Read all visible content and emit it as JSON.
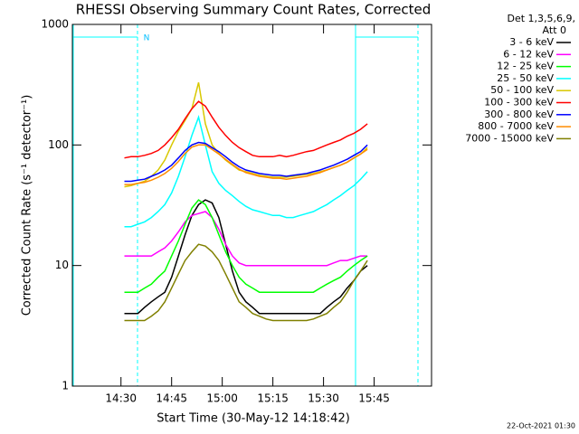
{
  "chart_data": {
    "type": "line",
    "title": "RHESSI Observing Summary Count Rates, Corrected",
    "xlabel": "Start Time (30-May-12 14:18:42)",
    "ylabel": "Corrected Count Rate (s⁻¹ detector⁻¹)",
    "legend_title": [
      "Det 1,3,5,6,9,",
      "Att 0"
    ],
    "annotation": "N",
    "footer": "22-Oct-2021 01:30",
    "ylog": true,
    "legend": "outside-right",
    "xlim": [
      15.6,
      122
    ],
    "ylim": [
      1,
      1000
    ],
    "xticks": [
      {
        "value": 30,
        "label": "14:30"
      },
      {
        "value": 45,
        "label": "14:45"
      },
      {
        "value": 60,
        "label": "15:00"
      },
      {
        "value": 75,
        "label": "15:15"
      },
      {
        "value": 90,
        "label": "15:30"
      },
      {
        "value": 105,
        "label": "15:45"
      }
    ],
    "yticks": [
      1,
      10,
      100,
      1000
    ],
    "x": [
      31,
      33,
      35,
      37,
      39,
      41,
      43,
      45,
      47,
      49,
      51,
      53,
      55,
      57,
      59,
      61,
      63,
      65,
      67,
      69,
      71,
      73,
      75,
      77,
      79,
      81,
      83,
      85,
      87,
      89,
      91,
      93,
      95,
      97,
      99,
      101,
      103
    ],
    "series": [
      {
        "name": "3 - 6 keV",
        "color": "#000000",
        "values": [
          4,
          4,
          4,
          4.5,
          5,
          5.5,
          6,
          8,
          12,
          18,
          26,
          32,
          35,
          33,
          25,
          15,
          9,
          6,
          5,
          4.5,
          4,
          4,
          4,
          4,
          4,
          4,
          4,
          4,
          4,
          4,
          4.5,
          5,
          5.5,
          6.5,
          7.5,
          9,
          10
        ]
      },
      {
        "name": "6 - 12 keV",
        "color": "#ff00ff",
        "values": [
          12,
          12,
          12,
          12,
          12,
          13,
          14,
          16,
          19,
          23,
          26,
          27,
          28,
          25,
          20,
          15,
          12,
          10.5,
          10,
          10,
          10,
          10,
          10,
          10,
          10,
          10,
          10,
          10,
          10,
          10,
          10,
          10.5,
          11,
          11,
          11.5,
          12,
          12
        ]
      },
      {
        "name": "12 - 25 keV",
        "color": "#00ff00",
        "values": [
          6,
          6,
          6,
          6.5,
          7,
          8,
          9,
          12,
          16,
          22,
          30,
          35,
          32,
          25,
          18,
          13,
          10,
          8,
          7,
          6.5,
          6,
          6,
          6,
          6,
          6,
          6,
          6,
          6,
          6,
          6.5,
          7,
          7.5,
          8,
          9,
          10,
          11,
          12
        ]
      },
      {
        "name": "25 - 50 keV",
        "color": "#00ffff",
        "values": [
          21,
          21,
          22,
          23,
          25,
          28,
          32,
          40,
          55,
          80,
          120,
          170,
          100,
          60,
          48,
          42,
          38,
          34,
          31,
          29,
          28,
          27,
          26,
          26,
          25,
          25,
          26,
          27,
          28,
          30,
          32,
          35,
          38,
          42,
          46,
          52,
          60
        ]
      },
      {
        "name": "50 - 100 keV",
        "color": "#d8c800",
        "values": [
          45,
          46,
          48,
          50,
          55,
          62,
          75,
          100,
          130,
          160,
          200,
          330,
          150,
          100,
          85,
          75,
          68,
          62,
          60,
          58,
          56,
          55,
          54,
          54,
          54,
          55,
          56,
          57,
          58,
          60,
          62,
          65,
          68,
          72,
          78,
          84,
          95
        ]
      },
      {
        "name": "100 - 300 keV",
        "color": "#ff0000",
        "values": [
          78,
          80,
          80,
          82,
          85,
          90,
          100,
          115,
          135,
          165,
          200,
          230,
          210,
          170,
          140,
          120,
          105,
          95,
          88,
          82,
          80,
          80,
          80,
          82,
          80,
          82,
          85,
          88,
          90,
          95,
          100,
          105,
          110,
          118,
          125,
          135,
          150
        ]
      },
      {
        "name": "300 - 800 keV",
        "color": "#0000ff",
        "values": [
          50,
          50,
          51,
          52,
          55,
          58,
          62,
          68,
          78,
          90,
          100,
          105,
          103,
          95,
          88,
          80,
          72,
          66,
          62,
          60,
          58,
          57,
          56,
          56,
          55,
          56,
          57,
          58,
          60,
          62,
          65,
          68,
          72,
          76,
          82,
          88,
          100
        ]
      },
      {
        "name": "800 - 7000 keV",
        "color": "#ff8c00",
        "values": [
          47,
          47,
          48,
          49,
          51,
          54,
          58,
          64,
          73,
          85,
          96,
          100,
          100,
          92,
          84,
          76,
          69,
          63,
          59,
          57,
          55,
          54,
          53,
          53,
          52,
          53,
          54,
          55,
          57,
          59,
          62,
          65,
          68,
          72,
          78,
          84,
          92
        ]
      },
      {
        "name": "7000 - 15000 keV",
        "color": "#808000",
        "values": [
          3.5,
          3.5,
          3.5,
          3.5,
          3.8,
          4.2,
          5,
          6.5,
          8.5,
          11,
          13,
          15,
          14.5,
          13,
          11,
          8.5,
          6.5,
          5,
          4.5,
          4,
          3.8,
          3.6,
          3.5,
          3.5,
          3.5,
          3.5,
          3.5,
          3.5,
          3.6,
          3.8,
          4,
          4.5,
          5,
          6,
          7.5,
          9,
          11
        ]
      }
    ]
  }
}
